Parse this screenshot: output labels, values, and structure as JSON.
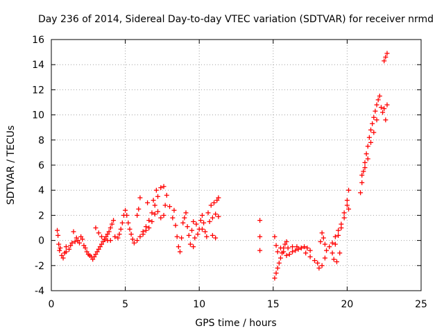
{
  "chart_data": {
    "type": "scatter",
    "title": "Day 236 of 2014, Sidereal Day-to-day VTEC variation (SDTVAR) for receiver nrmd",
    "xlabel": "GPS time / hours",
    "ylabel": "SDTVAR / TECUs",
    "xlim": [
      0,
      25
    ],
    "ylim": [
      -4,
      16
    ],
    "grid": true,
    "marker": "+",
    "color": "#ff0000",
    "xticks": [
      0,
      5,
      10,
      15,
      20,
      25
    ],
    "xtick_labels": [
      "0",
      "5",
      "10",
      "15",
      "20",
      "25"
    ],
    "yticks": [
      -4,
      -2,
      0,
      2,
      4,
      6,
      8,
      10,
      12,
      14,
      16
    ],
    "ytick_labels": [
      "-4",
      "-2",
      "0",
      "2",
      "4",
      "6",
      "8",
      "10",
      "12",
      "14",
      "16"
    ],
    "series": [
      {
        "name": "SDTVAR",
        "points": [
          [
            0.4,
            0.8
          ],
          [
            0.45,
            0.4
          ],
          [
            0.5,
            -0.3
          ],
          [
            0.55,
            -0.8
          ],
          [
            0.6,
            -0.6
          ],
          [
            0.7,
            -1.2
          ],
          [
            0.8,
            -1.4
          ],
          [
            0.9,
            -1.0
          ],
          [
            1.0,
            -0.5
          ],
          [
            1.0,
            -0.9
          ],
          [
            1.2,
            -0.7
          ],
          [
            1.3,
            -0.4
          ],
          [
            1.4,
            -0.2
          ],
          [
            1.5,
            0.7
          ],
          [
            1.6,
            -0.1
          ],
          [
            1.7,
            0.2
          ],
          [
            1.8,
            0.0
          ],
          [
            1.9,
            -0.2
          ],
          [
            2.0,
            0.3
          ],
          [
            2.1,
            0.1
          ],
          [
            2.2,
            -0.4
          ],
          [
            2.3,
            -0.6
          ],
          [
            2.4,
            -0.9
          ],
          [
            2.5,
            -1.1
          ],
          [
            2.6,
            -1.2
          ],
          [
            2.7,
            -1.3
          ],
          [
            2.8,
            -1.5
          ],
          [
            2.9,
            -1.3
          ],
          [
            3.0,
            -1.1
          ],
          [
            3.1,
            -0.9
          ],
          [
            3.2,
            -0.7
          ],
          [
            3.3,
            -0.5
          ],
          [
            3.4,
            -0.3
          ],
          [
            3.5,
            -0.1
          ],
          [
            3.6,
            0.1
          ],
          [
            3.7,
            0.3
          ],
          [
            3.8,
            0.5
          ],
          [
            3.9,
            0.7
          ],
          [
            4.0,
            1.0
          ],
          [
            4.1,
            1.3
          ],
          [
            4.2,
            1.6
          ],
          [
            3.0,
            1.0
          ],
          [
            3.2,
            0.6
          ],
          [
            3.4,
            0.3
          ],
          [
            3.6,
            0.1
          ],
          [
            3.8,
            0.0
          ],
          [
            4.0,
            0.0
          ],
          [
            4.3,
            0.3
          ],
          [
            4.5,
            0.2
          ],
          [
            4.6,
            0.5
          ],
          [
            4.7,
            0.9
          ],
          [
            4.8,
            1.4
          ],
          [
            4.9,
            2.0
          ],
          [
            5.0,
            2.4
          ],
          [
            5.1,
            2.0
          ],
          [
            5.2,
            1.4
          ],
          [
            5.3,
            0.9
          ],
          [
            5.4,
            0.5
          ],
          [
            5.5,
            0.1
          ],
          [
            5.6,
            -0.2
          ],
          [
            5.8,
            0.0
          ],
          [
            6.0,
            0.3
          ],
          [
            6.2,
            0.7
          ],
          [
            6.4,
            1.1
          ],
          [
            6.6,
            1.6
          ],
          [
            6.8,
            2.2
          ],
          [
            7.0,
            2.8
          ],
          [
            7.2,
            3.5
          ],
          [
            7.4,
            4.2
          ],
          [
            7.6,
            4.3
          ],
          [
            7.8,
            3.6
          ],
          [
            7.7,
            2.8
          ],
          [
            7.6,
            2.0
          ],
          [
            7.4,
            1.8
          ],
          [
            7.2,
            2.3
          ],
          [
            7.0,
            2.1
          ],
          [
            6.8,
            1.5
          ],
          [
            6.6,
            1.0
          ],
          [
            6.4,
            0.8
          ],
          [
            6.2,
            0.5
          ],
          [
            6.0,
            3.4
          ],
          [
            5.9,
            2.5
          ],
          [
            5.8,
            2.0
          ],
          [
            6.5,
            3.0
          ],
          [
            6.9,
            3.2
          ],
          [
            7.1,
            4.0
          ],
          [
            8.0,
            2.7
          ],
          [
            8.2,
            1.8
          ],
          [
            8.3,
            2.4
          ],
          [
            8.4,
            1.2
          ],
          [
            8.5,
            0.3
          ],
          [
            8.6,
            -0.5
          ],
          [
            8.7,
            -0.9
          ],
          [
            8.8,
            0.2
          ],
          [
            8.9,
            1.4
          ],
          [
            9.0,
            1.8
          ],
          [
            9.1,
            2.2
          ],
          [
            9.2,
            1.1
          ],
          [
            9.3,
            0.4
          ],
          [
            9.4,
            -0.3
          ],
          [
            9.5,
            0.8
          ],
          [
            9.6,
            1.5
          ],
          [
            9.7,
            0.2
          ],
          [
            9.8,
            1.3
          ],
          [
            9.9,
            0.5
          ],
          [
            10.0,
            0.9
          ],
          [
            10.1,
            1.6
          ],
          [
            10.2,
            2.0
          ],
          [
            10.3,
            1.4
          ],
          [
            10.4,
            0.7
          ],
          [
            10.5,
            0.3
          ],
          [
            10.6,
            2.2
          ],
          [
            10.7,
            1.5
          ],
          [
            10.8,
            2.8
          ],
          [
            10.9,
            1.8
          ],
          [
            11.0,
            3.0
          ],
          [
            11.1,
            2.1
          ],
          [
            11.2,
            3.2
          ],
          [
            11.3,
            3.4
          ],
          [
            11.3,
            1.9
          ],
          [
            11.1,
            0.2
          ],
          [
            10.9,
            0.4
          ],
          [
            10.2,
            0.9
          ],
          [
            9.6,
            -0.5
          ],
          [
            14.1,
            1.6
          ],
          [
            14.1,
            0.3
          ],
          [
            14.1,
            -0.8
          ],
          [
            15.1,
            -3.0
          ],
          [
            15.2,
            -2.6
          ],
          [
            15.3,
            -2.2
          ],
          [
            15.4,
            -1.8
          ],
          [
            15.5,
            -1.4
          ],
          [
            15.6,
            -1.0
          ],
          [
            15.7,
            -0.6
          ],
          [
            15.8,
            -0.3
          ],
          [
            15.9,
            -0.1
          ],
          [
            15.1,
            0.3
          ],
          [
            15.2,
            -0.4
          ],
          [
            15.3,
            -0.9
          ],
          [
            15.5,
            -0.6
          ],
          [
            15.7,
            -0.9
          ],
          [
            15.9,
            -1.2
          ],
          [
            16.1,
            -1.1
          ],
          [
            16.3,
            -0.9
          ],
          [
            16.5,
            -0.8
          ],
          [
            16.7,
            -0.7
          ],
          [
            16.9,
            -0.6
          ],
          [
            17.1,
            -0.5
          ],
          [
            17.3,
            -0.6
          ],
          [
            17.5,
            -0.8
          ],
          [
            16.0,
            -0.6
          ],
          [
            16.3,
            -0.5
          ],
          [
            16.6,
            -0.5
          ],
          [
            16.9,
            -0.6
          ],
          [
            17.2,
            -1.0
          ],
          [
            17.5,
            -1.3
          ],
          [
            17.8,
            -1.6
          ],
          [
            18.0,
            -1.8
          ],
          [
            18.1,
            -2.2
          ],
          [
            18.3,
            -2.0
          ],
          [
            18.5,
            -1.4
          ],
          [
            18.6,
            -0.8
          ],
          [
            18.5,
            -0.3
          ],
          [
            18.4,
            0.2
          ],
          [
            18.3,
            0.6
          ],
          [
            18.2,
            -0.1
          ],
          [
            18.8,
            -0.5
          ],
          [
            19.0,
            -0.2
          ],
          [
            19.2,
            0.3
          ],
          [
            19.4,
            0.8
          ],
          [
            19.6,
            1.3
          ],
          [
            19.8,
            2.2
          ],
          [
            20.0,
            3.2
          ],
          [
            20.1,
            4.0
          ],
          [
            20.0,
            2.8
          ],
          [
            19.8,
            1.8
          ],
          [
            19.6,
            1.0
          ],
          [
            19.4,
            0.4
          ],
          [
            19.2,
            -0.3
          ],
          [
            19.0,
            -1.0
          ],
          [
            19.1,
            -1.5
          ],
          [
            19.3,
            -1.7
          ],
          [
            19.5,
            -1.0
          ],
          [
            20.1,
            2.5
          ],
          [
            20.9,
            3.8
          ],
          [
            21.0,
            4.6
          ],
          [
            21.1,
            5.5
          ],
          [
            21.2,
            6.2
          ],
          [
            21.3,
            6.9
          ],
          [
            21.4,
            7.5
          ],
          [
            21.5,
            8.2
          ],
          [
            21.6,
            8.8
          ],
          [
            21.7,
            9.3
          ],
          [
            21.8,
            9.8
          ],
          [
            21.9,
            10.3
          ],
          [
            22.0,
            10.8
          ],
          [
            22.1,
            11.2
          ],
          [
            22.2,
            11.5
          ],
          [
            21.0,
            5.2
          ],
          [
            21.2,
            5.8
          ],
          [
            21.4,
            6.5
          ],
          [
            21.6,
            7.8
          ],
          [
            21.8,
            8.6
          ],
          [
            22.0,
            9.6
          ],
          [
            22.3,
            10.6
          ],
          [
            22.4,
            10.2
          ],
          [
            22.5,
            10.5
          ],
          [
            22.6,
            9.6
          ],
          [
            22.7,
            10.8
          ],
          [
            22.5,
            14.3
          ],
          [
            22.6,
            14.6
          ],
          [
            22.7,
            14.9
          ]
        ]
      }
    ]
  }
}
